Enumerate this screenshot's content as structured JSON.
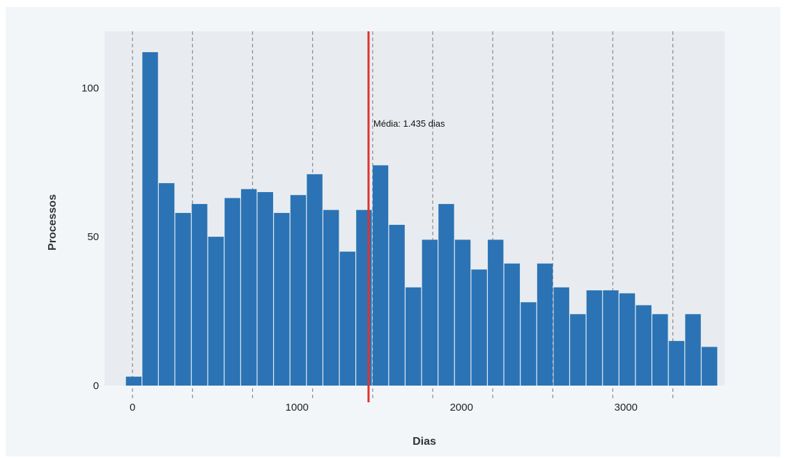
{
  "chart_data": {
    "type": "bar",
    "title": "",
    "xlabel": "Dias",
    "ylabel": "Processos",
    "xlim": [
      -170,
      3600
    ],
    "ylim": [
      0,
      119
    ],
    "bin_width": 100,
    "bins": [
      {
        "x0": -40,
        "x1": 60,
        "count": 3
      },
      {
        "x0": 60,
        "x1": 160,
        "count": 112
      },
      {
        "x0": 160,
        "x1": 260,
        "count": 68
      },
      {
        "x0": 260,
        "x1": 360,
        "count": 58
      },
      {
        "x0": 360,
        "x1": 460,
        "count": 61
      },
      {
        "x0": 460,
        "x1": 560,
        "count": 50
      },
      {
        "x0": 560,
        "x1": 660,
        "count": 63
      },
      {
        "x0": 660,
        "x1": 760,
        "count": 66
      },
      {
        "x0": 760,
        "x1": 860,
        "count": 65
      },
      {
        "x0": 860,
        "x1": 960,
        "count": 58
      },
      {
        "x0": 960,
        "x1": 1060,
        "count": 64
      },
      {
        "x0": 1060,
        "x1": 1160,
        "count": 71
      },
      {
        "x0": 1160,
        "x1": 1260,
        "count": 59
      },
      {
        "x0": 1260,
        "x1": 1360,
        "count": 45
      },
      {
        "x0": 1360,
        "x1": 1460,
        "count": 59
      },
      {
        "x0": 1460,
        "x1": 1560,
        "count": 74
      },
      {
        "x0": 1560,
        "x1": 1660,
        "count": 54
      },
      {
        "x0": 1660,
        "x1": 1760,
        "count": 33
      },
      {
        "x0": 1760,
        "x1": 1860,
        "count": 49
      },
      {
        "x0": 1860,
        "x1": 1960,
        "count": 61
      },
      {
        "x0": 1960,
        "x1": 2060,
        "count": 49
      },
      {
        "x0": 2060,
        "x1": 2160,
        "count": 39
      },
      {
        "x0": 2160,
        "x1": 2260,
        "count": 49
      },
      {
        "x0": 2260,
        "x1": 2360,
        "count": 41
      },
      {
        "x0": 2360,
        "x1": 2460,
        "count": 28
      },
      {
        "x0": 2460,
        "x1": 2560,
        "count": 41
      },
      {
        "x0": 2560,
        "x1": 2660,
        "count": 33
      },
      {
        "x0": 2660,
        "x1": 2760,
        "count": 24
      },
      {
        "x0": 2760,
        "x1": 2860,
        "count": 32
      },
      {
        "x0": 2860,
        "x1": 2960,
        "count": 32
      },
      {
        "x0": 2960,
        "x1": 3060,
        "count": 31
      },
      {
        "x0": 3060,
        "x1": 3160,
        "count": 27
      },
      {
        "x0": 3160,
        "x1": 3260,
        "count": 24
      },
      {
        "x0": 3260,
        "x1": 3360,
        "count": 15
      },
      {
        "x0": 3360,
        "x1": 3460,
        "count": 24
      },
      {
        "x0": 3460,
        "x1": 3560,
        "count": 13
      }
    ],
    "x_ticks": [
      0,
      1000,
      2000,
      3000
    ],
    "x_tick_labels": [
      "0",
      "1000",
      "2000",
      "3000"
    ],
    "y_ticks": [
      0,
      50,
      100
    ],
    "y_tick_labels": [
      "0",
      "50",
      "100"
    ],
    "vertical_gridlines": [
      0,
      365,
      730,
      1095,
      1460,
      1825,
      2190,
      2555,
      2920,
      3285
    ],
    "mean_line": {
      "x": 1435,
      "label": "Média: 1.435 dias",
      "color": "#e03131"
    },
    "bar_color": "#2b73b4",
    "plot_background": "#e8ecf0",
    "grid": true,
    "grid_style": "dashed"
  }
}
